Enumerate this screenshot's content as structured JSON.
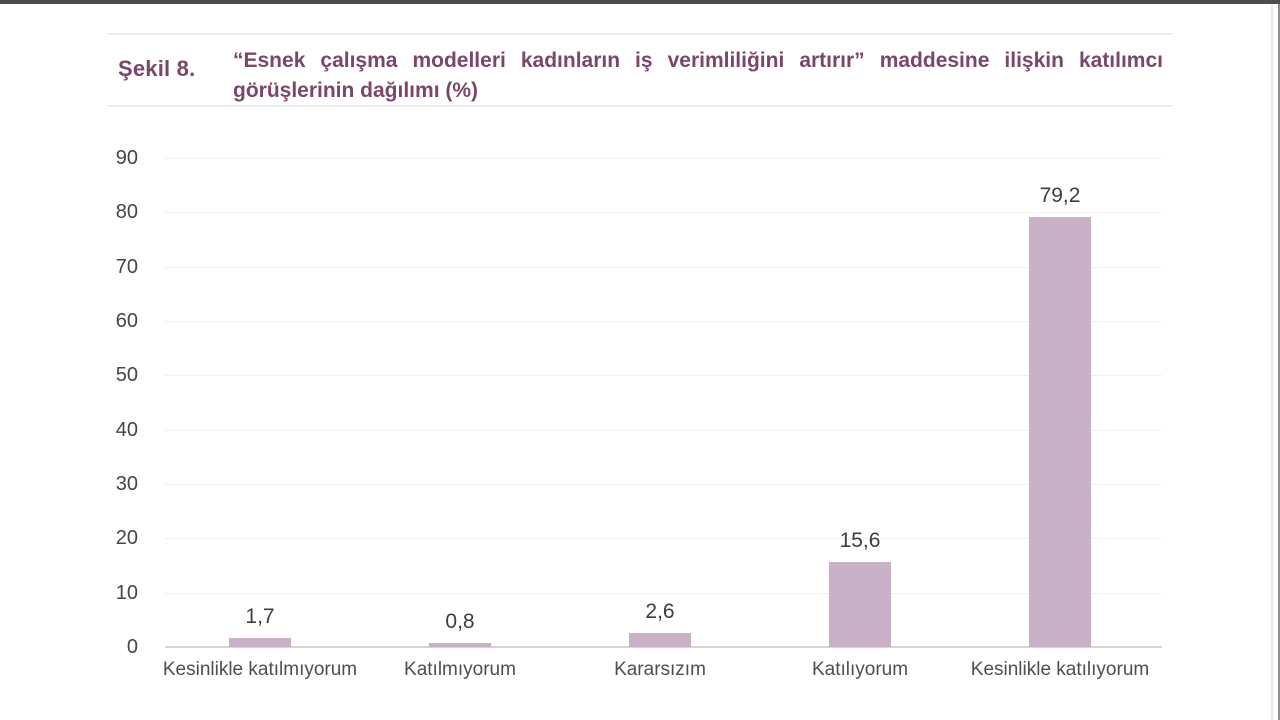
{
  "header": {
    "figure_label": "Şekil 8.",
    "figure_title_line1": "“Esnek çalışma modelleri kadınların iş verimliliğini artırır” maddesine ilişkin katılımcı",
    "figure_title_line2": "görüşlerinin dağılımı (%)"
  },
  "chart_data": {
    "type": "bar",
    "title": "“Esnek çalışma modelleri kadınların iş verimliliğini artırır” maddesine ilişkin katılımcı görüşlerinin dağılımı (%)",
    "categories": [
      "Kesinlikle katılmıyorum",
      "Katılmıyorum",
      "Kararsızım",
      "Katılıyorum",
      "Kesinlikle katılıyorum"
    ],
    "values": [
      1.7,
      0.8,
      2.6,
      15.6,
      79.2
    ],
    "value_labels": [
      "1,7",
      "0,8",
      "2,6",
      "15,6",
      "79,2"
    ],
    "xlabel": "",
    "ylabel": "",
    "ylim": [
      0,
      90
    ],
    "yticks": [
      0,
      10,
      20,
      30,
      40,
      50,
      60,
      70,
      80,
      90
    ],
    "grid": true,
    "legend": false,
    "colors": {
      "bar_fill": "#c9b2c8",
      "title_text": "#7a4769",
      "ytick_text": "#454545",
      "category_text": "#4e4e4e",
      "value_text": "#3d3d3d",
      "gridline": "#f3f0f2",
      "baseline": "#d8d4d6"
    }
  }
}
